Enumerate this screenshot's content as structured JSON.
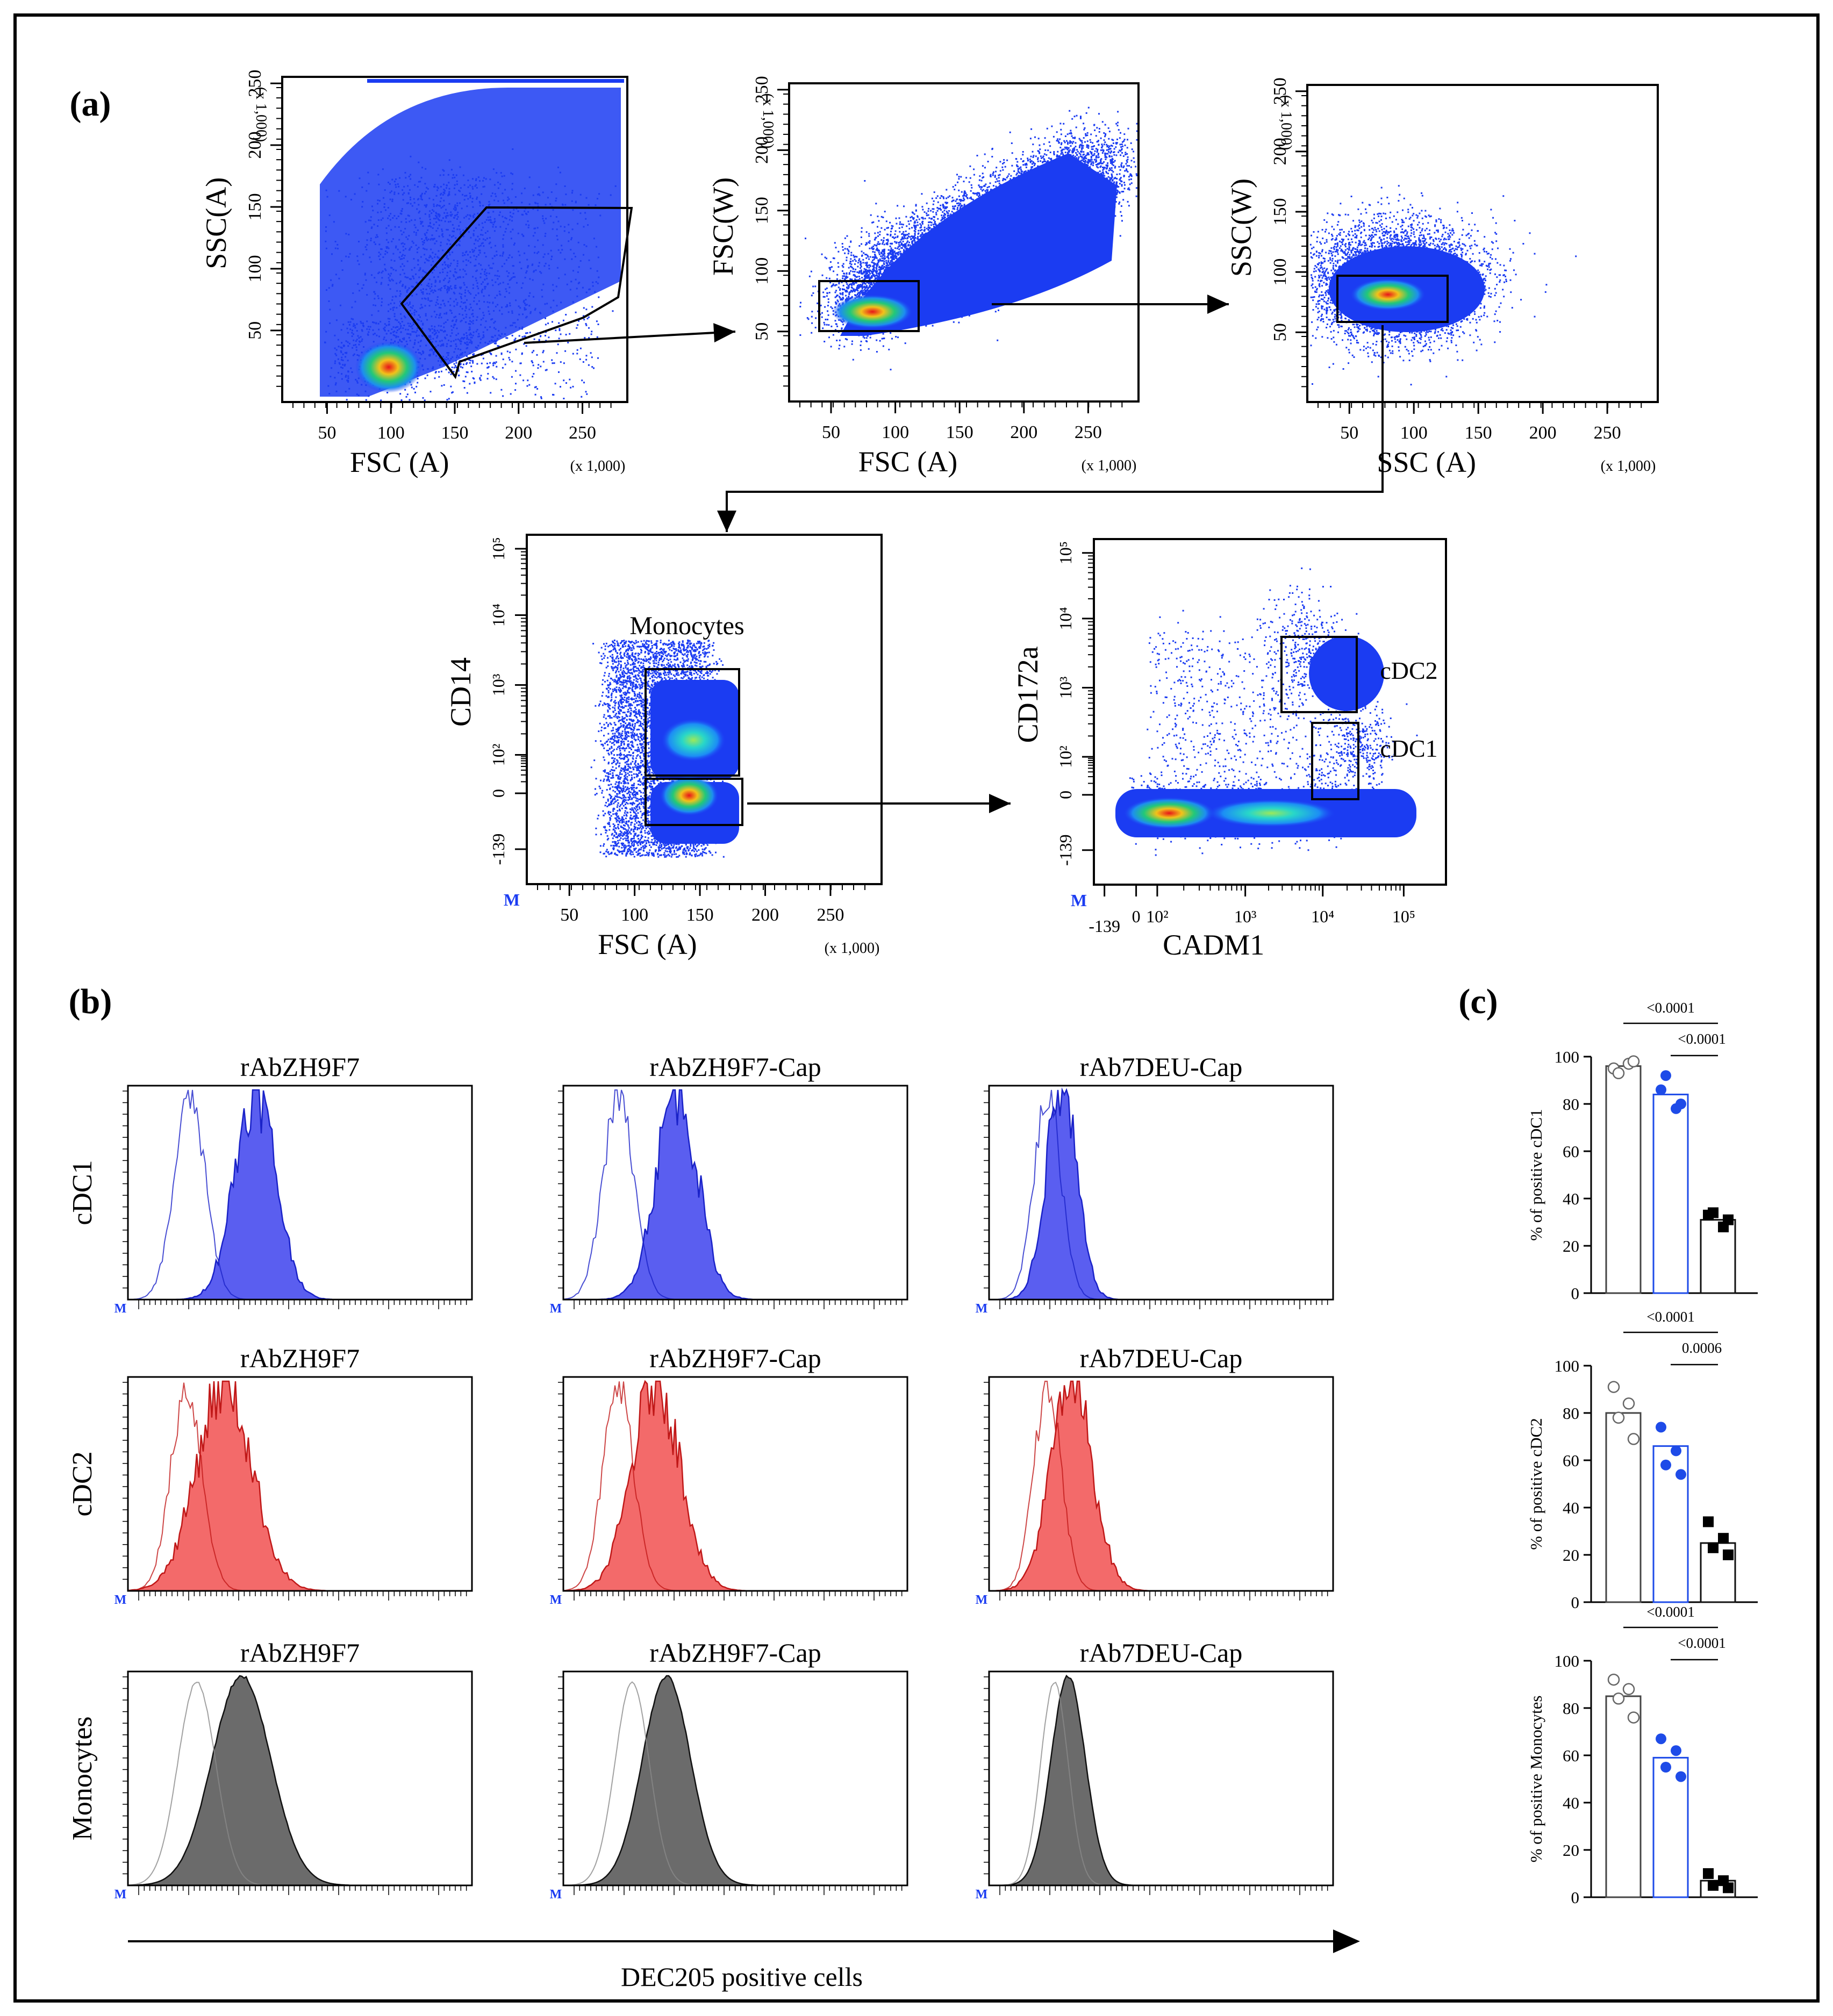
{
  "panels": {
    "a": "(a)",
    "b": "(b)",
    "c": "(c)"
  },
  "gating": [
    {
      "id": "p1",
      "ylabel": "SSC(A)",
      "xlabel": "FSC (A)",
      "yunit": "(x 1,000)",
      "xunit": "(x 1,000)",
      "yticks": [
        "50",
        "100",
        "150",
        "200",
        "250"
      ],
      "xticks": [
        "50",
        "100",
        "150",
        "200",
        "250"
      ]
    },
    {
      "id": "p2",
      "ylabel": "FSC(W)",
      "xlabel": "FSC (A)",
      "yunit": "(x 1,000)",
      "xunit": "(x 1,000)",
      "yticks": [
        "50",
        "100",
        "150",
        "200",
        "250"
      ],
      "xticks": [
        "50",
        "100",
        "150",
        "200",
        "250"
      ]
    },
    {
      "id": "p3",
      "ylabel": "SSC(W)",
      "xlabel": "SSC (A)",
      "yunit": "(x 1,000)",
      "xunit": "(x 1,000)",
      "yticks": [
        "50",
        "100",
        "150",
        "200",
        "250"
      ],
      "xticks": [
        "50",
        "100",
        "150",
        "200",
        "250"
      ]
    },
    {
      "id": "p4",
      "ylabel": "CD14",
      "xlabel": "FSC (A)",
      "xunit": "(x 1,000)",
      "gate_label": "Monocytes",
      "ylog": [
        "10⁵",
        "10⁴",
        "10³",
        "10²",
        "0",
        "-139"
      ],
      "xticks": [
        "50",
        "100",
        "150",
        "200",
        "250"
      ],
      "corner": "M"
    },
    {
      "id": "p5",
      "ylabel": "CD172a",
      "xlabel": "CADM1",
      "gate_labels": [
        "cDC2",
        "cDC1"
      ],
      "ylog": [
        "10⁵",
        "10⁴",
        "10³",
        "10²",
        "0",
        "-139"
      ],
      "xlog": [
        "-139",
        "0",
        "10²",
        "10³",
        "10⁴",
        "10⁵"
      ],
      "corner": "M"
    }
  ],
  "histograms": {
    "columns": [
      "rAbZH9F7",
      "rAbZH9F7-Cap",
      "rAb7DEU-Cap"
    ],
    "rows": [
      {
        "label": "cDC1",
        "fill": "#5a5ef0",
        "stroke": "#1a22c8"
      },
      {
        "label": "cDC2",
        "fill": "#f36a6a",
        "stroke": "#c01818"
      },
      {
        "label": "Monocytes",
        "fill": "#6b6b6b",
        "stroke": "#111111"
      }
    ],
    "corner": "M",
    "x_axis_label": "DEC205 positive cells"
  },
  "chart_data": [
    {
      "type": "bar",
      "title": "",
      "xlabel": "",
      "ylabel": "% of positive cDC1",
      "ylim": [
        0,
        100
      ],
      "yticks": [
        "0",
        "20",
        "40",
        "60",
        "80",
        "100"
      ],
      "categories": [
        "rAbZH9F7",
        "rAbZH9F7-Cap",
        "rAb7DEU-Cap"
      ],
      "values": [
        96,
        84,
        31
      ],
      "points": [
        [
          95,
          97,
          93,
          98
        ],
        [
          86,
          78,
          92,
          80
        ],
        [
          33,
          28,
          34,
          31
        ]
      ],
      "pvalues": [
        "<0.0001",
        "<0.0001"
      ]
    },
    {
      "type": "bar",
      "title": "",
      "xlabel": "",
      "ylabel": "% of positive cDC2",
      "ylim": [
        0,
        100
      ],
      "yticks": [
        "0",
        "20",
        "40",
        "60",
        "80",
        "100"
      ],
      "categories": [
        "rAbZH9F7",
        "rAbZH9F7-Cap",
        "rAb7DEU-Cap"
      ],
      "values": [
        80,
        66,
        25
      ],
      "points": [
        [
          91,
          84,
          78,
          69
        ],
        [
          74,
          64,
          58,
          54
        ],
        [
          34,
          27,
          23,
          20
        ]
      ],
      "pvalues": [
        "<0.0001",
        "0.0006"
      ]
    },
    {
      "type": "bar",
      "title": "",
      "xlabel": "",
      "ylabel": "% of positive Monocytes",
      "ylim": [
        0,
        100
      ],
      "yticks": [
        "0",
        "20",
        "40",
        "60",
        "80",
        "100"
      ],
      "categories": [
        "rAbZH9F7",
        "rAbZH9F7-Cap",
        "rAb7DEU-Cap"
      ],
      "values": [
        85,
        59,
        7
      ],
      "points": [
        [
          92,
          88,
          84,
          76
        ],
        [
          67,
          62,
          55,
          51
        ],
        [
          10,
          7,
          5,
          4
        ]
      ],
      "pvalues": [
        "<0.0001",
        "<0.0001"
      ]
    }
  ]
}
